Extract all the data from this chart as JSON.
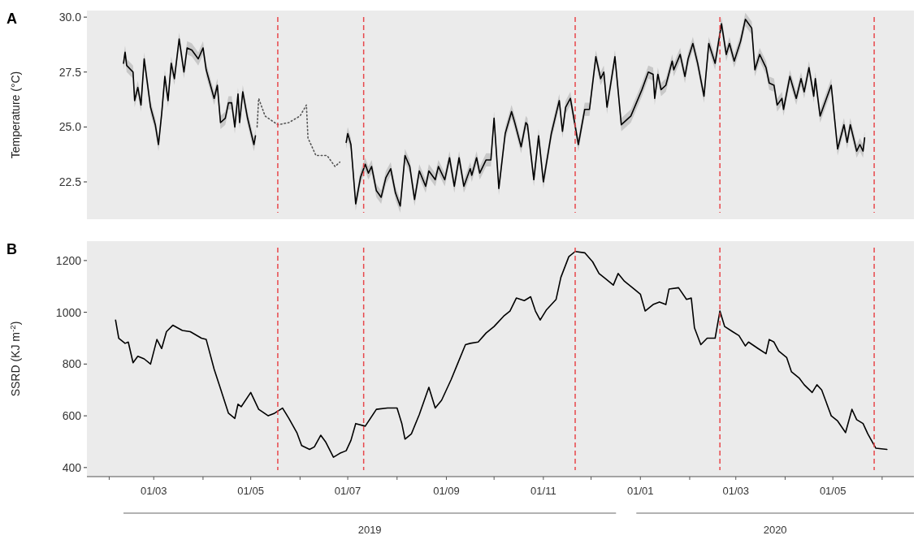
{
  "chart_data": [
    {
      "type": "line",
      "title": "A",
      "ylabel": "Temperature (°C)",
      "xlim": [
        "2019-01-18",
        "2020-06-21"
      ],
      "ylim": [
        20.8,
        30.3
      ],
      "yticks": [
        {
          "value": 22.5,
          "label": "22.5"
        },
        {
          "value": 25,
          "label": "25.0"
        },
        {
          "value": 27.5,
          "label": "27.5"
        },
        {
          "value": 30,
          "label": "30.0"
        }
      ],
      "tick_labels": "y",
      "series": [
        {
          "color": "#000000",
          "line_style": "solid",
          "x": [
            "2019-02-10",
            "2019-02-11",
            "2019-02-12",
            "2019-02-16",
            "2019-02-17",
            "2019-02-19",
            "2019-02-21",
            "2019-02-23",
            "2019-02-27",
            "2019-03-02",
            "2019-03-04",
            "2019-03-06",
            "2019-03-08",
            "2019-03-10",
            "2019-03-12",
            "2019-03-14",
            "2019-03-17",
            "2019-03-20",
            "2019-03-22",
            "2019-03-25",
            "2019-03-29",
            "2019-04-01",
            "2019-04-03",
            "2019-04-08",
            "2019-04-10",
            "2019-04-12",
            "2019-04-15",
            "2019-04-17",
            "2019-04-19",
            "2019-04-21",
            "2019-04-23",
            "2019-04-24",
            "2019-04-26",
            "2019-04-29",
            "2019-05-03",
            "2019-05-04",
            "2019-05-20",
            "2019-06-30",
            "2019-07-01",
            "2019-07-03",
            "2019-07-06",
            "2019-07-09",
            "2019-07-12",
            "2019-07-14",
            "2019-07-16",
            "2019-07-19",
            "2019-07-22",
            "2019-07-25",
            "2019-07-28",
            "2019-07-31",
            "2019-08-03",
            "2019-08-06",
            "2019-08-09",
            "2019-08-12",
            "2019-08-15",
            "2019-08-19",
            "2019-08-21",
            "2019-08-25",
            "2019-08-27",
            "2019-08-31",
            "2019-09-03",
            "2019-09-06",
            "2019-09-09",
            "2019-09-12",
            "2019-09-16",
            "2019-09-17",
            "2019-09-20",
            "2019-09-22",
            "2019-09-26",
            "2019-09-29",
            "2019-10-01",
            "2019-10-04",
            "2019-10-08",
            "2019-10-12",
            "2019-10-14",
            "2019-10-18",
            "2019-10-21",
            "2019-10-22",
            "2019-10-26",
            "2019-10-29",
            "2019-11-01",
            "2019-11-06",
            "2019-11-11",
            "2019-11-13",
            "2019-11-15",
            "2019-11-18",
            "2019-11-23",
            "2019-11-27",
            "2019-11-30",
            "2019-12-04",
            "2019-12-07",
            "2019-12-09",
            "2019-12-11",
            "2019-12-13",
            "2019-12-16",
            "2019-12-20",
            "2019-12-26",
            "2020-01-02",
            "2020-01-06",
            "2020-01-09",
            "2020-01-10",
            "2020-01-12",
            "2020-01-14",
            "2020-01-17",
            "2020-01-21",
            "2020-01-22",
            "2020-01-26",
            "2020-01-29",
            "2020-01-31",
            "2020-02-03",
            "2020-02-06",
            "2020-02-10",
            "2020-02-13",
            "2020-02-17",
            "2020-02-21",
            "2020-02-24",
            "2020-02-26",
            "2020-02-29",
            "2020-03-04",
            "2020-03-07",
            "2020-03-11",
            "2020-03-13",
            "2020-03-16",
            "2020-03-20",
            "2020-03-22",
            "2020-03-25",
            "2020-03-27",
            "2020-03-30",
            "2020-03-31",
            "2020-04-04",
            "2020-04-08",
            "2020-04-11",
            "2020-04-13",
            "2020-04-16",
            "2020-04-19",
            "2020-04-20",
            "2020-04-23",
            "2020-04-30",
            "2020-05-04",
            "2020-05-08",
            "2020-05-10",
            "2020-05-12",
            "2020-05-16",
            "2020-05-18",
            "2020-05-20",
            "2020-05-21"
          ],
          "values": [
            27.9,
            28.4,
            27.8,
            27.5,
            26.2,
            26.8,
            26.0,
            28.1,
            25.9,
            25.1,
            24.2,
            25.6,
            27.3,
            26.2,
            27.9,
            27.2,
            29.0,
            27.5,
            28.6,
            28.5,
            28.1,
            28.6,
            27.6,
            26.3,
            26.9,
            25.2,
            25.4,
            26.1,
            26.1,
            25.0,
            26.5,
            25.2,
            26.6,
            25.4,
            24.2,
            24.6,
            null,
            24.3,
            24.7,
            24.2,
            21.5,
            22.7,
            23.3,
            22.9,
            23.2,
            22.1,
            21.8,
            22.7,
            23.1,
            22.0,
            21.4,
            23.7,
            23.2,
            21.7,
            23.0,
            22.3,
            23.0,
            22.6,
            23.2,
            22.6,
            23.6,
            22.3,
            23.6,
            22.3,
            23.1,
            22.8,
            23.6,
            22.9,
            23.5,
            23.5,
            25.4,
            22.2,
            24.7,
            25.7,
            25.2,
            24.1,
            25.2,
            25.1,
            22.6,
            24.6,
            22.5,
            24.7,
            26.2,
            24.8,
            25.9,
            26.3,
            24.2,
            25.8,
            25.8,
            28.2,
            27.2,
            27.5,
            25.9,
            26.8,
            28.2,
            25.1,
            25.5,
            26.7,
            27.5,
            27.4,
            26.3,
            27.4,
            26.7,
            26.9,
            28.0,
            27.6,
            28.3,
            27.3,
            28.1,
            28.8,
            27.9,
            26.4,
            28.8,
            27.9,
            29.7,
            28.3,
            28.8,
            28.0,
            28.9,
            29.9,
            29.5,
            27.6,
            28.3,
            27.7,
            27.0,
            26.9,
            26.0,
            26.3,
            25.8,
            27.3,
            26.3,
            27.2,
            26.6,
            27.7,
            26.4,
            27.2,
            25.5,
            26.9,
            24.0,
            25.1,
            24.3,
            25.1,
            23.9,
            24.2,
            23.9,
            24.5
          ],
          "lower": [
            27.6,
            28.1,
            27.5,
            27.2,
            25.9,
            26.5,
            25.7,
            27.8,
            25.6,
            24.8,
            23.9,
            25.3,
            27.0,
            25.9,
            27.6,
            26.9,
            28.7,
            27.2,
            28.3,
            28.2,
            27.8,
            28.3,
            27.3,
            26.0,
            26.6,
            24.9,
            25.1,
            25.8,
            25.8,
            24.7,
            26.2,
            24.9,
            26.3,
            25.1,
            23.9,
            24.3,
            null,
            24.0,
            24.4,
            23.9,
            21.2,
            22.4,
            23.0,
            22.6,
            22.9,
            21.8,
            21.5,
            22.4,
            22.8,
            21.7,
            21.1,
            23.4,
            22.9,
            21.4,
            22.7,
            22.0,
            22.7,
            22.3,
            22.9,
            22.3,
            23.3,
            22.0,
            23.3,
            22.0,
            22.8,
            22.5,
            23.3,
            22.6,
            23.2,
            23.2,
            25.1,
            21.9,
            24.4,
            25.4,
            24.9,
            23.8,
            24.9,
            24.8,
            22.3,
            24.3,
            22.2,
            24.4,
            25.9,
            24.5,
            25.6,
            26.0,
            23.9,
            25.5,
            25.5,
            27.9,
            26.9,
            27.2,
            25.6,
            26.5,
            27.9,
            24.8,
            25.2,
            26.4,
            27.2,
            27.1,
            26.0,
            27.1,
            26.4,
            26.6,
            27.7,
            27.3,
            28.0,
            27.0,
            27.8,
            28.5,
            27.6,
            26.1,
            28.5,
            27.6,
            29.4,
            28.0,
            28.5,
            27.7,
            28.6,
            29.6,
            29.2,
            27.3,
            28.0,
            27.4,
            26.7,
            26.6,
            25.7,
            26.0,
            25.5,
            27.0,
            26.0,
            26.9,
            26.3,
            27.4,
            26.1,
            26.9,
            25.2,
            26.6,
            23.7,
            24.8,
            24.0,
            24.8,
            23.6,
            23.9,
            23.6,
            24.2
          ],
          "upper": [
            28.2,
            28.7,
            28.1,
            27.8,
            26.5,
            27.1,
            26.3,
            28.4,
            26.2,
            25.4,
            24.5,
            25.9,
            27.6,
            26.5,
            28.2,
            27.5,
            29.3,
            27.8,
            28.9,
            28.8,
            28.4,
            28.9,
            27.9,
            26.6,
            27.2,
            25.5,
            25.7,
            26.4,
            26.4,
            25.3,
            26.8,
            25.5,
            26.9,
            25.7,
            24.5,
            24.9,
            null,
            24.6,
            25.0,
            24.5,
            21.8,
            23.0,
            23.6,
            23.2,
            23.5,
            22.4,
            22.1,
            23.0,
            23.4,
            22.3,
            21.7,
            24.0,
            23.5,
            22.0,
            23.3,
            22.6,
            23.3,
            22.9,
            23.5,
            22.9,
            23.9,
            22.6,
            23.9,
            22.6,
            23.4,
            23.1,
            23.9,
            23.2,
            23.8,
            23.8,
            25.7,
            22.5,
            25.0,
            26.0,
            25.5,
            24.4,
            25.5,
            25.4,
            22.9,
            24.9,
            22.8,
            25.0,
            26.5,
            25.1,
            26.2,
            26.6,
            24.5,
            26.1,
            26.1,
            28.5,
            27.5,
            27.8,
            26.2,
            27.1,
            28.5,
            25.4,
            25.8,
            27.0,
            27.8,
            27.7,
            26.6,
            27.7,
            27.0,
            27.2,
            28.3,
            27.9,
            28.6,
            27.6,
            28.4,
            29.1,
            28.2,
            26.7,
            29.1,
            28.2,
            30.0,
            28.6,
            29.1,
            28.3,
            29.2,
            30.2,
            29.8,
            27.9,
            28.6,
            28.0,
            27.3,
            27.2,
            26.3,
            26.6,
            26.1,
            27.6,
            26.6,
            27.5,
            26.9,
            28.0,
            26.7,
            27.5,
            25.8,
            27.2,
            24.3,
            25.4,
            24.6,
            25.4,
            24.2,
            24.5,
            24.2,
            24.8
          ]
        },
        {
          "color": "#555555",
          "line_style": "dotted",
          "x": [
            "2019-05-05",
            "2019-05-06",
            "2019-05-10",
            "2019-05-18",
            "2019-05-25",
            "2019-06-01",
            "2019-06-05",
            "2019-06-06",
            "2019-06-11",
            "2019-06-18",
            "2019-06-23",
            "2019-06-26"
          ],
          "values": [
            25.0,
            26.3,
            25.5,
            25.1,
            25.2,
            25.5,
            26.0,
            24.5,
            23.7,
            23.7,
            23.2,
            23.4
          ]
        }
      ],
      "ref_lines": [
        {
          "axis": "x",
          "value": "2019-05-18",
          "color": "#e8474b",
          "line_style": "dashed"
        },
        {
          "axis": "x",
          "value": "2019-07-11",
          "color": "#e8474b",
          "line_style": "dashed"
        },
        {
          "axis": "x",
          "value": "2019-11-21",
          "color": "#e8474b",
          "line_style": "dashed"
        },
        {
          "axis": "x",
          "value": "2020-02-20",
          "color": "#e8474b",
          "line_style": "dashed"
        },
        {
          "axis": "x",
          "value": "2020-05-27",
          "color": "#e8474b",
          "line_style": "dashed"
        }
      ]
    },
    {
      "type": "line",
      "title": "B",
      "ylabel": "SSRD (KJ m$^{-2}$)",
      "xlim": [
        "2019-01-18",
        "2020-06-21"
      ],
      "ylim": [
        365,
        1275
      ],
      "yticks": [
        400,
        600,
        800,
        1000,
        1200
      ],
      "xticks": [
        {
          "value": "2019-02-01",
          "label": null
        },
        {
          "value": "2019-03-01",
          "label": "01/03"
        },
        {
          "value": "2019-04-01",
          "label": null
        },
        {
          "value": "2019-05-01",
          "label": "01/05"
        },
        {
          "value": "2019-06-01",
          "label": null
        },
        {
          "value": "2019-07-01",
          "label": "01/07"
        },
        {
          "value": "2019-08-01",
          "label": null
        },
        {
          "value": "2019-09-01",
          "label": "01/09"
        },
        {
          "value": "2019-10-01",
          "label": null
        },
        {
          "value": "2019-11-01",
          "label": "01/11"
        },
        {
          "value": "2019-12-01",
          "label": null
        },
        {
          "value": "2020-01-01",
          "label": "01/01"
        },
        {
          "value": "2020-02-01",
          "label": null
        },
        {
          "value": "2020-03-01",
          "label": "01/03"
        },
        {
          "value": "2020-04-01",
          "label": null
        },
        {
          "value": "2020-05-01",
          "label": "01/05"
        },
        {
          "value": "2020-06-01",
          "label": null
        }
      ],
      "annotations": [
        "2019",
        "2020"
      ],
      "series": [
        {
          "color": "#000000",
          "line_style": "solid",
          "x": [
            "2019-02-05",
            "2019-02-07",
            "2019-02-11",
            "2019-02-13",
            "2019-02-16",
            "2019-02-19",
            "2019-02-23",
            "2019-02-27",
            "2019-03-03",
            "2019-03-06",
            "2019-03-09",
            "2019-03-13",
            "2019-03-19",
            "2019-03-24",
            "2019-03-31",
            "2019-04-03",
            "2019-04-08",
            "2019-04-12",
            "2019-04-17",
            "2019-04-21",
            "2019-04-23",
            "2019-04-25",
            "2019-05-01",
            "2019-05-06",
            "2019-05-12",
            "2019-05-16",
            "2019-05-21",
            "2019-05-25",
            "2019-05-30",
            "2019-06-02",
            "2019-06-07",
            "2019-06-10",
            "2019-06-14",
            "2019-06-17",
            "2019-06-22",
            "2019-06-26",
            "2019-06-30",
            "2019-07-03",
            "2019-07-06",
            "2019-07-12",
            "2019-07-19",
            "2019-07-26",
            "2019-08-01",
            "2019-08-04",
            "2019-08-06",
            "2019-08-10",
            "2019-08-15",
            "2019-08-21",
            "2019-08-25",
            "2019-08-29",
            "2019-09-04",
            "2019-09-08",
            "2019-09-13",
            "2019-09-16",
            "2019-09-21",
            "2019-09-26",
            "2019-10-01",
            "2019-10-07",
            "2019-10-11",
            "2019-10-15",
            "2019-10-20",
            "2019-10-24",
            "2019-10-27",
            "2019-10-30",
            "2019-11-03",
            "2019-11-09",
            "2019-11-12",
            "2019-11-17",
            "2019-11-21",
            "2019-11-27",
            "2019-12-02",
            "2019-12-06",
            "2019-12-10",
            "2019-12-15",
            "2019-12-18",
            "2019-12-22",
            "2019-12-28",
            "2020-01-01",
            "2020-01-04",
            "2020-01-09",
            "2020-01-13",
            "2020-01-17",
            "2020-01-19",
            "2020-01-25",
            "2020-01-30",
            "2020-02-02",
            "2020-02-04",
            "2020-02-08",
            "2020-02-12",
            "2020-02-17",
            "2020-02-20",
            "2020-02-23",
            "2020-02-28",
            "2020-03-03",
            "2020-03-07",
            "2020-03-09",
            "2020-03-15",
            "2020-03-20",
            "2020-03-22",
            "2020-03-25",
            "2020-03-28",
            "2020-04-02",
            "2020-04-05",
            "2020-04-10",
            "2020-04-13",
            "2020-04-18",
            "2020-04-21",
            "2020-04-24",
            "2020-04-30",
            "2020-05-04",
            "2020-05-09",
            "2020-05-13",
            "2020-05-16",
            "2020-05-20",
            "2020-05-23",
            "2020-05-28",
            "2020-06-04"
          ],
          "values": [
            970,
            900,
            880,
            885,
            805,
            830,
            820,
            800,
            895,
            860,
            925,
            950,
            930,
            925,
            900,
            895,
            780,
            705,
            610,
            590,
            645,
            635,
            690,
            625,
            600,
            610,
            630,
            590,
            535,
            485,
            470,
            480,
            525,
            500,
            440,
            455,
            465,
            505,
            570,
            560,
            625,
            630,
            630,
            570,
            510,
            530,
            605,
            710,
            630,
            660,
            740,
            800,
            875,
            880,
            885,
            920,
            945,
            985,
            1005,
            1055,
            1045,
            1060,
            1005,
            970,
            1010,
            1050,
            1135,
            1215,
            1235,
            1230,
            1195,
            1150,
            1130,
            1105,
            1150,
            1120,
            1090,
            1070,
            1005,
            1030,
            1040,
            1030,
            1090,
            1095,
            1050,
            1055,
            940,
            875,
            900,
            900,
            1005,
            945,
            925,
            910,
            870,
            885,
            860,
            840,
            895,
            885,
            850,
            825,
            770,
            745,
            720,
            690,
            720,
            700,
            600,
            580,
            535,
            625,
            585,
            570,
            530,
            475,
            470
          ]
        }
      ],
      "ref_lines": [
        {
          "axis": "x",
          "value": "2019-05-18",
          "color": "#e8474b",
          "line_style": "dashed"
        },
        {
          "axis": "x",
          "value": "2019-07-11",
          "color": "#e8474b",
          "line_style": "dashed"
        },
        {
          "axis": "x",
          "value": "2019-11-21",
          "color": "#e8474b",
          "line_style": "dashed"
        },
        {
          "axis": "x",
          "value": "2020-02-20",
          "color": "#e8474b",
          "line_style": "dashed"
        },
        {
          "axis": "x",
          "value": "2020-05-27",
          "color": "#e8474b",
          "line_style": "dashed"
        }
      ]
    }
  ]
}
